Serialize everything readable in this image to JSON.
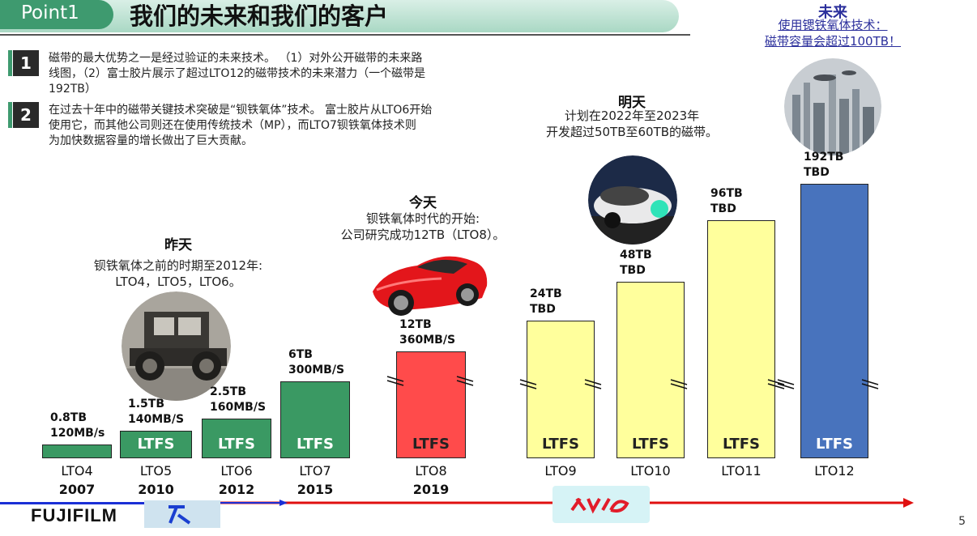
{
  "header": {
    "point_label": "Point1",
    "title": "我们的未来和我们的客户"
  },
  "points": [
    {
      "number": "1",
      "lines": [
        "磁带的最大优势之一是经过验证的未来技术。 （1）对外公开磁带的未来路",
        "线图，（2）富士胶片展示了超过LTO12的磁带技术的未来潜力（一个磁带是",
        "192TB）"
      ]
    },
    {
      "number": "2",
      "lines": [
        "在过去十年中的磁带关键技术突破是“钡铁氧体”技术。 富士胶片从LTO6开始",
        "使用它，而其他公司则还在使用传统技术（MP），而LTO7钡铁氧体技术则",
        "为加快数据容量的增长做出了巨大贡献。"
      ]
    }
  ],
  "sections": {
    "yesterday": {
      "heading": "昨天",
      "lines": [
        "钡铁氧体之前的时期至2012年:",
        "LTO4，LTO5，LTO6。"
      ]
    },
    "today": {
      "heading": "今天",
      "lines": [
        "钡铁氧体时代的开始:",
        "公司研究成功12TB（LTO8）。"
      ]
    },
    "tomorrow": {
      "heading": "明天",
      "lines": [
        "计划在2022年至2023年",
        "开发超过50TB至60TB的磁带。"
      ]
    },
    "future": {
      "heading": "未来",
      "lines": [
        "使用锶铁氧体技术：",
        "磁带容量会超过100TB！"
      ]
    }
  },
  "generations": [
    {
      "gen": "LTO4",
      "year": "2007",
      "capacity": "0.8TB",
      "speed": "120MB/s",
      "ltfs": "",
      "color": "#3a9963"
    },
    {
      "gen": "LTO5",
      "year": "2010",
      "capacity": "1.5TB",
      "speed": "140MB/S",
      "ltfs": "LTFS",
      "color": "#3a9963"
    },
    {
      "gen": "LTO6",
      "year": "2012",
      "capacity": "2.5TB",
      "speed": "160MB/S",
      "ltfs": "LTFS",
      "color": "#3a9963"
    },
    {
      "gen": "LTO7",
      "year": "2015",
      "capacity": "6TB",
      "speed": "300MB/S",
      "ltfs": "LTFS",
      "color": "#3a9963"
    },
    {
      "gen": "LTO8",
      "year": "2019",
      "capacity": "12TB",
      "speed": "360MB/S",
      "ltfs": "LTFS",
      "color": "#ff4b4b"
    },
    {
      "gen": "LTO9",
      "year": "",
      "capacity": "24TB",
      "speed": "TBD",
      "ltfs": "LTFS",
      "color": "#ffff9c"
    },
    {
      "gen": "LTO10",
      "year": "",
      "capacity": "48TB",
      "speed": "TBD",
      "ltfs": "LTFS",
      "color": "#ffff9c"
    },
    {
      "gen": "LTO11",
      "year": "",
      "capacity": "96TB",
      "speed": "TBD",
      "ltfs": "LTFS",
      "color": "#ffff9c"
    },
    {
      "gen": "LTO12",
      "year": "",
      "capacity": "192TB",
      "speed": "TBD",
      "ltfs": "LTFS",
      "color": "#4873bd"
    }
  ],
  "footer": {
    "brand": "FUJIFILM",
    "page_number": "5"
  },
  "icons": [
    "vintage-car-photo",
    "red-sports-car-photo",
    "concept-car-photo",
    "futuristic-city-photo",
    "fujifilm-logo",
    "legacy-logo",
    "future-logo",
    "timeline-arrow"
  ]
}
